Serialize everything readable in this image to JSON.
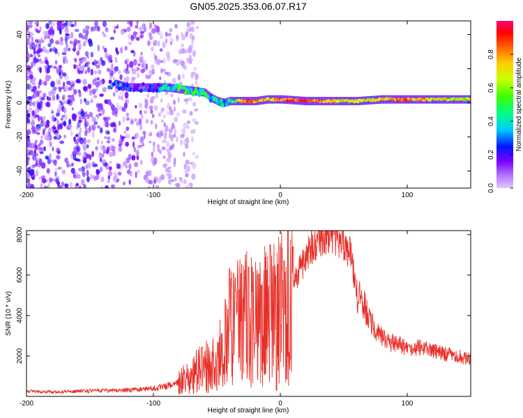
{
  "title": "GN05.2025.353.06.07.R17",
  "chart_data": [
    {
      "type": "heatmap",
      "title": "GN05.2025.353.06.07.R17",
      "xlabel": "Height of straight line (km)",
      "ylabel": "Frequency (Hz)",
      "xlim": [
        -200,
        150
      ],
      "ylim": [
        -50,
        48
      ],
      "xticks": [
        -200,
        -100,
        0,
        100
      ],
      "xtick_labels": [
        "-200",
        "-100",
        "0",
        "100"
      ],
      "yticks": [
        -40,
        -20,
        0,
        20,
        40
      ],
      "ytick_labels": [
        "-40",
        "-20",
        "0",
        "20",
        "40"
      ],
      "colorbar": {
        "label": "Normalized spectral amplitude",
        "range": [
          0,
          1
        ],
        "ticks": [
          0.0,
          0.2,
          0.4,
          0.6,
          0.8
        ],
        "tick_labels": [
          "0.0",
          "0.2",
          "0.4",
          "0.6",
          "0.8"
        ]
      },
      "ridge": {
        "x": [
          -160,
          -140,
          -130,
          -120,
          -100,
          -90,
          -80,
          -70,
          -60,
          -55,
          -50,
          -45,
          -40,
          -35,
          -30,
          -20,
          -10,
          0,
          20,
          40,
          60,
          80,
          100,
          120,
          150
        ],
        "freq": [
          10,
          10,
          11,
          9,
          9,
          9,
          8,
          7,
          6,
          3,
          1,
          0,
          1,
          1,
          1,
          1,
          2,
          2,
          1,
          1,
          1,
          2,
          2,
          2,
          2
        ],
        "amplitude": [
          0.1,
          0.15,
          0.3,
          0.2,
          0.2,
          0.4,
          0.45,
          0.45,
          0.45,
          0.4,
          0.35,
          0.35,
          0.4,
          0.5,
          0.85,
          0.8,
          0.7,
          0.85,
          0.9,
          0.7,
          0.65,
          0.7,
          0.85,
          0.7,
          0.6
        ]
      },
      "noise_region_x": [
        -200,
        -80
      ]
    },
    {
      "type": "line",
      "xlabel": "Height of straight line (km)",
      "ylabel": "SNR (10 * v/v)",
      "xlim": [
        -200,
        150
      ],
      "ylim": [
        0,
        8200
      ],
      "xticks": [
        -200,
        -100,
        0,
        100
      ],
      "xtick_labels": [
        "-200",
        "-100",
        "0",
        "100"
      ],
      "yticks": [
        2000,
        4000,
        6000,
        8000
      ],
      "ytick_labels": [
        "2000",
        "4000",
        "6000",
        "8000"
      ],
      "series": [
        {
          "name": "SNR",
          "color": "#e8302a",
          "x": [
            -200,
            -180,
            -160,
            -140,
            -120,
            -100,
            -90,
            -80,
            -70,
            -65,
            -60,
            -55,
            -50,
            -45,
            -40,
            -35,
            -30,
            -25,
            -20,
            -15,
            -10,
            -5,
            0,
            5,
            10,
            15,
            20,
            25,
            30,
            35,
            40,
            45,
            50,
            55,
            58,
            60,
            65,
            70,
            75,
            80,
            90,
            100,
            110,
            120,
            130,
            140,
            150
          ],
          "y": [
            250,
            220,
            250,
            280,
            300,
            400,
            500,
            700,
            1000,
            1300,
            1500,
            1400,
            1700,
            2500,
            3200,
            3800,
            3500,
            4000,
            3800,
            4300,
            4000,
            4300,
            4500,
            5000,
            5500,
            6200,
            6900,
            7400,
            7600,
            7900,
            8000,
            7800,
            7600,
            7100,
            6000,
            5000,
            4700,
            3800,
            3200,
            2900,
            2600,
            2400,
            2400,
            2300,
            2100,
            2000,
            1800
          ],
          "spikes": [
            {
              "x": -62,
              "y": 2400
            },
            {
              "x": -40,
              "y": 6300
            },
            {
              "x": -35,
              "y": 5200
            },
            {
              "x": -25,
              "y": 6400
            },
            {
              "x": -20,
              "y": 2600
            },
            {
              "x": -15,
              "y": 5500
            },
            {
              "x": -8,
              "y": 7500
            },
            {
              "x": -3,
              "y": 300
            },
            {
              "x": 3,
              "y": 6700
            },
            {
              "x": 10,
              "y": 7400
            }
          ]
        }
      ]
    }
  ]
}
